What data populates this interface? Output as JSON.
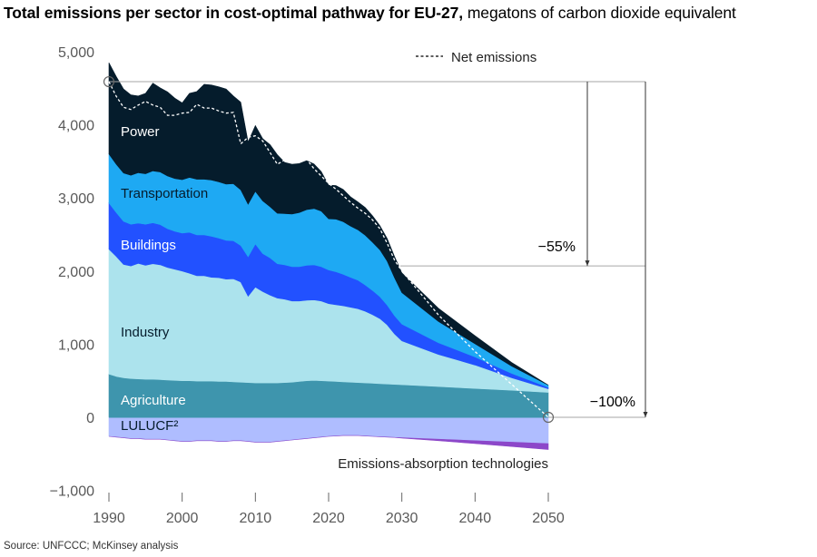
{
  "header": {
    "title_bold": "Total emissions per sector in cost-optimal pathway for EU-27,",
    "title_regular": "megatons of carbon dioxide equivalent"
  },
  "footer": {
    "source": "Source: UNFCCC; McKinsey analysis"
  },
  "chart_data": {
    "type": "area",
    "stacked": true,
    "title": "Total emissions per sector in cost-optimal pathway for EU-27, megatons of carbon dioxide equivalent",
    "xlabel": "",
    "ylabel": "",
    "xlim": [
      1990,
      2050
    ],
    "ylim": [
      -1000,
      5000
    ],
    "x_ticks": [
      1990,
      2000,
      2010,
      2020,
      2030,
      2040,
      2050
    ],
    "x_tick_labels": [
      "1990",
      "2000",
      "2010",
      "2020",
      "2030",
      "2040",
      "2050"
    ],
    "y_ticks": [
      -1000,
      0,
      1000,
      2000,
      3000,
      4000,
      5000
    ],
    "y_tick_labels": [
      "−1,000",
      "0",
      "1,000",
      "2,000",
      "3,000",
      "4,000",
      "5,000"
    ],
    "x": [
      1990,
      1991,
      1992,
      1993,
      1994,
      1995,
      1996,
      1997,
      1998,
      1999,
      2000,
      2001,
      2002,
      2003,
      2004,
      2005,
      2006,
      2007,
      2008,
      2009,
      2010,
      2011,
      2012,
      2013,
      2014,
      2015,
      2016,
      2017,
      2018,
      2019,
      2020,
      2021,
      2022,
      2023,
      2024,
      2025,
      2026,
      2027,
      2028,
      2029,
      2030,
      2035,
      2040,
      2045,
      2050
    ],
    "series": [
      {
        "name": "Agriculture",
        "color": "#3e95ad",
        "values": [
          590,
          560,
          540,
          530,
          525,
          520,
          520,
          515,
          510,
          505,
          500,
          500,
          495,
          495,
          495,
          490,
          490,
          485,
          480,
          475,
          470,
          470,
          470,
          470,
          475,
          480,
          490,
          500,
          505,
          500,
          495,
          490,
          485,
          480,
          475,
          470,
          465,
          460,
          455,
          450,
          445,
          420,
          395,
          370,
          340
        ]
      },
      {
        "name": "Industry",
        "color": "#ace3ed",
        "values": [
          1710,
          1640,
          1550,
          1540,
          1580,
          1560,
          1580,
          1570,
          1540,
          1520,
          1500,
          1470,
          1440,
          1440,
          1420,
          1420,
          1400,
          1410,
          1370,
          1180,
          1310,
          1250,
          1200,
          1160,
          1140,
          1110,
          1100,
          1100,
          1100,
          1090,
          1060,
          1050,
          1040,
          1025,
          1010,
          980,
          940,
          890,
          810,
          690,
          600,
          440,
          320,
          170,
          50
        ]
      },
      {
        "name": "Buildings",
        "color": "#2251ff",
        "values": [
          630,
          600,
          590,
          570,
          550,
          560,
          560,
          550,
          530,
          520,
          520,
          560,
          560,
          560,
          560,
          540,
          530,
          520,
          500,
          540,
          590,
          520,
          510,
          470,
          470,
          470,
          470,
          480,
          480,
          470,
          460,
          450,
          430,
          410,
          390,
          360,
          330,
          300,
          270,
          250,
          230,
          160,
          110,
          60,
          20
        ]
      },
      {
        "name": "Transportation",
        "color": "#1ea9f3",
        "values": [
          670,
          660,
          660,
          670,
          690,
          690,
          710,
          720,
          720,
          720,
          730,
          750,
          760,
          760,
          770,
          770,
          770,
          780,
          760,
          720,
          720,
          720,
          700,
          690,
          700,
          720,
          740,
          760,
          770,
          760,
          700,
          720,
          720,
          700,
          690,
          680,
          660,
          640,
          600,
          520,
          430,
          290,
          180,
          100,
          30
        ]
      },
      {
        "name": "Power",
        "color": "#051c2c",
        "values": [
          1250,
          1200,
          1150,
          1100,
          1050,
          1100,
          1200,
          1150,
          1150,
          1100,
          1050,
          1150,
          1200,
          1300,
          1300,
          1300,
          1300,
          1200,
          1200,
          850,
          900,
          850,
          850,
          800,
          700,
          680,
          670,
          670,
          610,
          540,
          460,
          460,
          440,
          400,
          380,
          380,
          360,
          330,
          310,
          290,
          270,
          180,
          110,
          50,
          0
        ]
      },
      {
        "name": "LULUCF²",
        "color": "#afbdff",
        "values": [
          -260,
          -270,
          -280,
          -290,
          -290,
          -300,
          -300,
          -300,
          -310,
          -320,
          -330,
          -330,
          -320,
          -320,
          -320,
          -330,
          -330,
          -320,
          -320,
          -330,
          -340,
          -340,
          -340,
          -330,
          -320,
          -310,
          -300,
          -290,
          -280,
          -270,
          -260,
          -255,
          -250,
          -250,
          -250,
          -255,
          -260,
          -265,
          -270,
          -275,
          -280,
          -300,
          -320,
          -340,
          -360
        ]
      },
      {
        "name": "Emissions-absorption technologies",
        "color": "#8c47c9",
        "values": [
          0,
          0,
          0,
          0,
          0,
          0,
          0,
          0,
          0,
          0,
          0,
          0,
          0,
          0,
          0,
          0,
          0,
          0,
          0,
          0,
          0,
          0,
          0,
          0,
          0,
          0,
          0,
          0,
          0,
          0,
          0,
          0,
          0,
          0,
          0,
          0,
          0,
          0,
          0,
          0,
          -5,
          -20,
          -40,
          -60,
          -80
        ]
      }
    ],
    "net_emissions": {
      "name": "Net emissions",
      "style": "dashed",
      "x": [
        1990,
        1991,
        1992,
        1993,
        1994,
        1995,
        1996,
        1997,
        1998,
        1999,
        2000,
        2001,
        2002,
        2003,
        2004,
        2005,
        2006,
        2007,
        2008,
        2009,
        2010,
        2011,
        2012,
        2013,
        2014,
        2015,
        2016,
        2017,
        2018,
        2019,
        2020,
        2021,
        2022,
        2023,
        2024,
        2025,
        2026,
        2027,
        2028,
        2029,
        2030,
        2035,
        2040,
        2045,
        2050
      ],
      "values": [
        4590,
        4390,
        4240,
        4210,
        4270,
        4320,
        4270,
        4240,
        4130,
        4130,
        4160,
        4170,
        4280,
        4230,
        4230,
        4190,
        4160,
        4170,
        3740,
        3830,
        3850,
        3780,
        3620,
        3460,
        3520,
        3530,
        3580,
        3530,
        3400,
        3300,
        3200,
        3120,
        3030,
        2940,
        2860,
        2790,
        2700,
        2580,
        2380,
        2150,
        2000,
        1400,
        900,
        450,
        0
      ]
    },
    "annotations": [
      {
        "label": "−55%",
        "from": 4590,
        "to": 2070
      },
      {
        "label": "−100%",
        "from": 4590,
        "to": 0
      }
    ],
    "legend": [
      {
        "label": "Net emissions",
        "style": "dashed",
        "position": "top"
      }
    ]
  }
}
